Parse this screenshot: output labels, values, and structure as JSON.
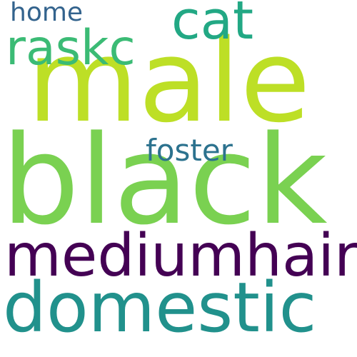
{
  "words": [
    {
      "text": "black",
      "color": "#7ad151"
    },
    {
      "text": "male",
      "color": "#bddf26"
    },
    {
      "text": "domestic",
      "color": "#21918c"
    },
    {
      "text": "mediumhair",
      "color": "#440154"
    },
    {
      "text": "raskc",
      "color": "#3bbb75"
    },
    {
      "text": "cat",
      "color": "#22a884"
    },
    {
      "text": "foster",
      "color": "#2c728e"
    },
    {
      "text": "home",
      "color": "#33638d"
    }
  ]
}
